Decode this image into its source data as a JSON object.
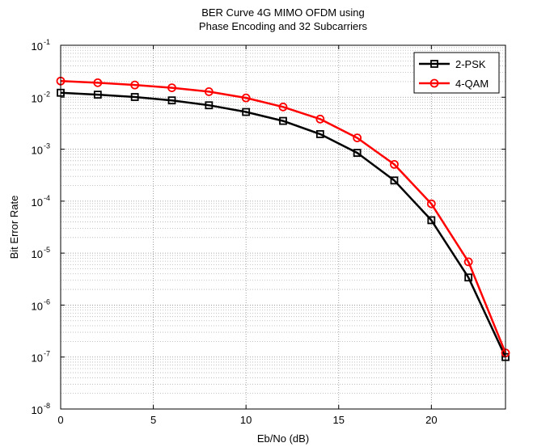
{
  "chart_data": {
    "type": "line",
    "title_lines": [
      "BER Curve 4G MIMO OFDM using",
      "Phase Encoding and 32 Subcarriers"
    ],
    "xlabel": "Eb/No (dB)",
    "ylabel": "Bit Error Rate",
    "xlim": [
      0,
      24
    ],
    "ylim": [
      1e-08,
      0.1
    ],
    "yscale": "log",
    "grid": true,
    "legend_position": "top-right",
    "x_ticks": [
      0,
      5,
      10,
      15,
      20
    ],
    "y_tick_exponents": [
      -8,
      -7,
      -6,
      -5,
      -4,
      -3,
      -2,
      -1
    ],
    "y_tick_base": "10",
    "series": [
      {
        "name": "2-PSK",
        "color": "#000000",
        "marker": "square",
        "x": [
          0,
          2,
          4,
          6,
          8,
          10,
          12,
          14,
          16,
          18,
          20,
          22,
          24
        ],
        "y": [
          0.0122,
          0.0112,
          0.0101,
          0.0087,
          0.007,
          0.0052,
          0.0035,
          0.00195,
          0.00085,
          0.00025,
          4.3e-05,
          3.4e-06,
          1e-07
        ]
      },
      {
        "name": "4-QAM",
        "color": "#ff0000",
        "marker": "circle",
        "x": [
          0,
          2,
          4,
          6,
          8,
          10,
          12,
          14,
          16,
          18,
          20,
          22,
          24
        ],
        "y": [
          0.0205,
          0.019,
          0.0172,
          0.0152,
          0.0128,
          0.0097,
          0.0065,
          0.0038,
          0.00165,
          0.00051,
          8.9e-05,
          6.8e-06,
          1.2e-07
        ]
      }
    ]
  }
}
